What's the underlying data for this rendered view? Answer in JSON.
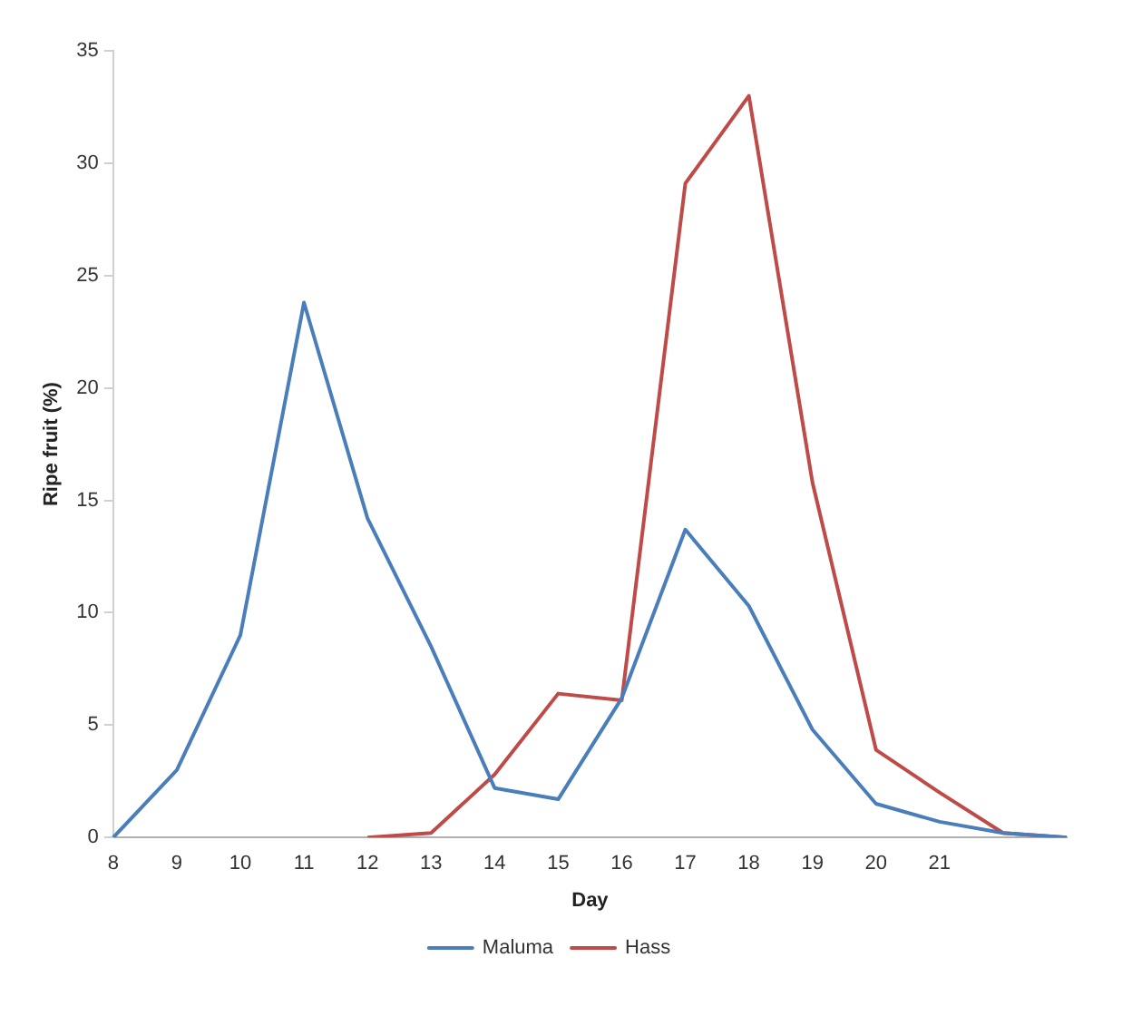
{
  "chart_data": {
    "type": "line",
    "xlabel": "Day",
    "ylabel": "Ripe fruit (%)",
    "categories": [
      "8",
      "9",
      "10",
      "11",
      "12",
      "13",
      "14",
      "15",
      "16",
      "17",
      "18",
      "19",
      "20",
      "21",
      null,
      null
    ],
    "series": [
      {
        "name": "Maluma",
        "color": "#4a7ebb",
        "values": [
          0,
          3,
          9,
          23.8,
          14.2,
          8.5,
          2.2,
          1.7,
          6.2,
          13.7,
          10.3,
          4.8,
          1.5,
          0.7,
          0.2,
          0
        ]
      },
      {
        "name": "Hass",
        "color": "#be4b48",
        "values": [
          null,
          null,
          null,
          null,
          0,
          0.2,
          2.8,
          6.4,
          6.1,
          29.1,
          33,
          15.8,
          3.9,
          2,
          0.2,
          0
        ]
      }
    ],
    "ylim": [
      0,
      35
    ],
    "yticks": [
      0,
      5,
      10,
      15,
      20,
      25,
      30,
      35
    ],
    "grid": false,
    "legend": "bottom",
    "marker": "none",
    "line_style": "solid"
  }
}
